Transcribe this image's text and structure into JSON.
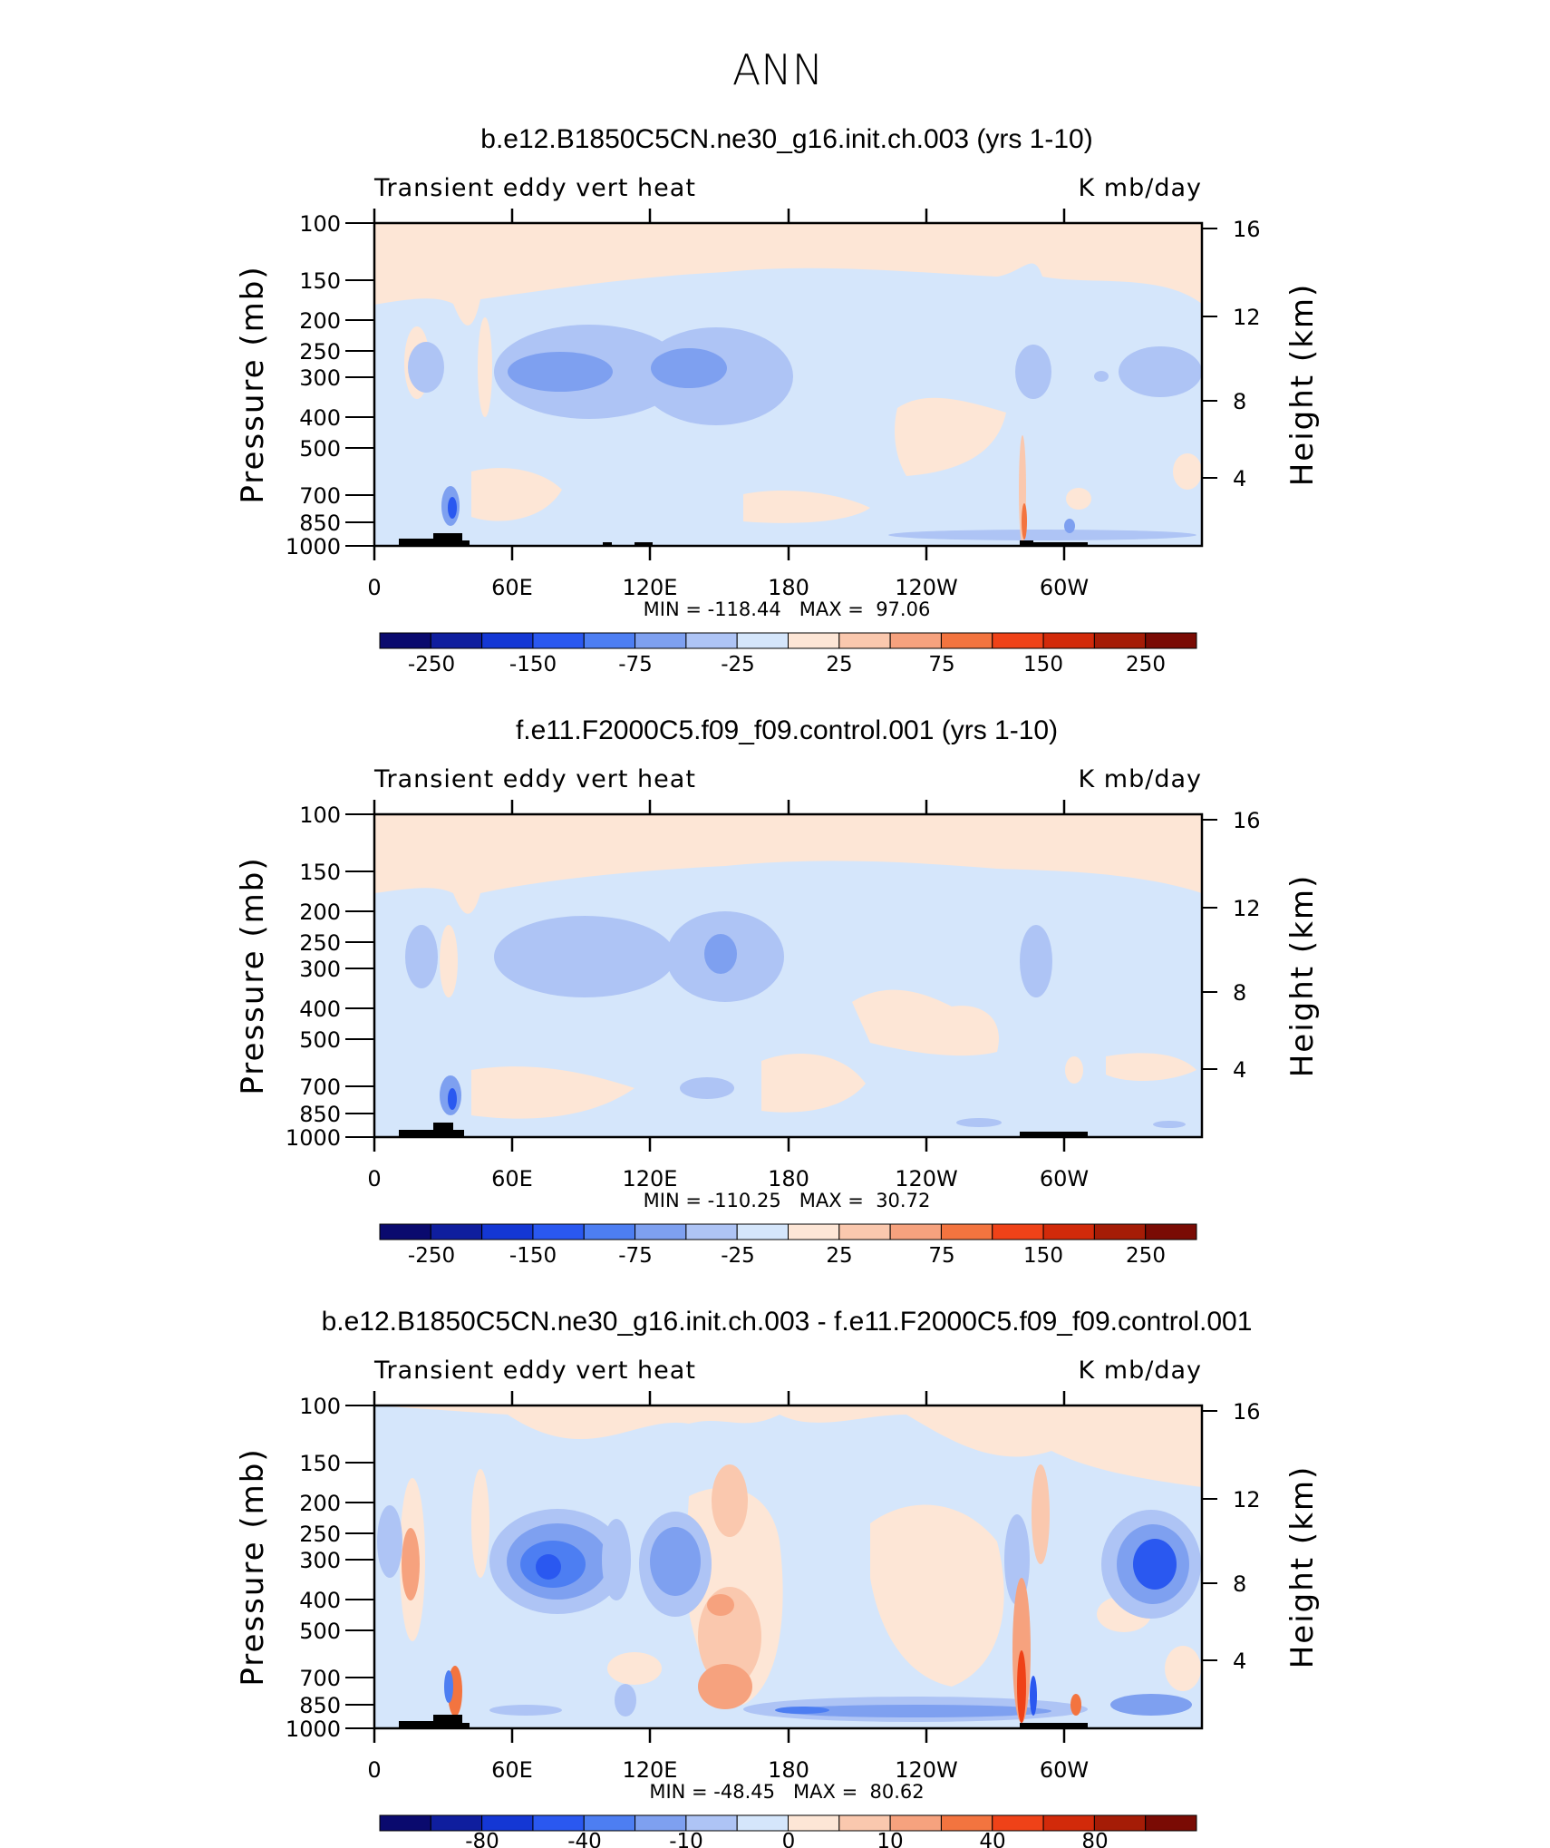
{
  "page_title": "ANN",
  "chart_data": [
    {
      "type": "heatmap",
      "title": "b.e12.B1850C5CN.ne30_g16.init.ch.003 (yrs 1-10)",
      "subtitle_left": "Transient eddy vert heat",
      "subtitle_right": "K mb/day",
      "ylabel": "Pressure (mb)",
      "ylabel_right": "Height (km)",
      "x_ticks": [
        "0",
        "60E",
        "120E",
        "180",
        "120W",
        "60W"
      ],
      "y_ticks": [
        "100",
        "150",
        "200",
        "250",
        "300",
        "400",
        "500",
        "700",
        "850",
        "1000"
      ],
      "y_right_ticks": [
        "16",
        "12",
        "8",
        "4"
      ],
      "stats": "MIN = -118.44   MAX =  97.06",
      "min": -118.44,
      "max": 97.06,
      "colorbar_labels": [
        "-250",
        "-150",
        "-75",
        "-25",
        "25",
        "75",
        "150",
        "250"
      ]
    },
    {
      "type": "heatmap",
      "title": "f.e11.F2000C5.f09_f09.control.001 (yrs 1-10)",
      "subtitle_left": "Transient eddy vert heat",
      "subtitle_right": "K mb/day",
      "ylabel": "Pressure (mb)",
      "ylabel_right": "Height (km)",
      "x_ticks": [
        "0",
        "60E",
        "120E",
        "180",
        "120W",
        "60W"
      ],
      "y_ticks": [
        "100",
        "150",
        "200",
        "250",
        "300",
        "400",
        "500",
        "700",
        "850",
        "1000"
      ],
      "y_right_ticks": [
        "16",
        "12",
        "8",
        "4"
      ],
      "stats": "MIN = -110.25   MAX =  30.72",
      "min": -110.25,
      "max": 30.72,
      "colorbar_labels": [
        "-250",
        "-150",
        "-75",
        "-25",
        "25",
        "75",
        "150",
        "250"
      ]
    },
    {
      "type": "heatmap",
      "title": "b.e12.B1850C5CN.ne30_g16.init.ch.003 - f.e11.F2000C5.f09_f09.control.001",
      "subtitle_left": "Transient eddy vert heat",
      "subtitle_right": "K mb/day",
      "ylabel": "Pressure (mb)",
      "ylabel_right": "Height (km)",
      "x_ticks": [
        "0",
        "60E",
        "120E",
        "180",
        "120W",
        "60W"
      ],
      "y_ticks": [
        "100",
        "150",
        "200",
        "250",
        "300",
        "400",
        "500",
        "700",
        "850",
        "1000"
      ],
      "y_right_ticks": [
        "16",
        "12",
        "8",
        "4"
      ],
      "stats": "MIN = -48.45   MAX =  80.62",
      "min": -48.45,
      "max": 80.62,
      "colorbar_labels": [
        "-80",
        "-40",
        "-10",
        "0",
        "10",
        "40",
        "80"
      ]
    }
  ],
  "colors": {
    "colorbar": [
      "#0a0a6e",
      "#0f1e9e",
      "#1437d4",
      "#2a58f0",
      "#4d7ef2",
      "#7ea0f0",
      "#aec4f5",
      "#d5e6fb",
      "#fde6d6",
      "#fac8ae",
      "#f6a27e",
      "#f3743f",
      "#ef4218",
      "#d22a0a",
      "#a51c06",
      "#7a0b04"
    ],
    "base_positive": "#fde6d6",
    "base_negative": "#d5e6fb"
  }
}
